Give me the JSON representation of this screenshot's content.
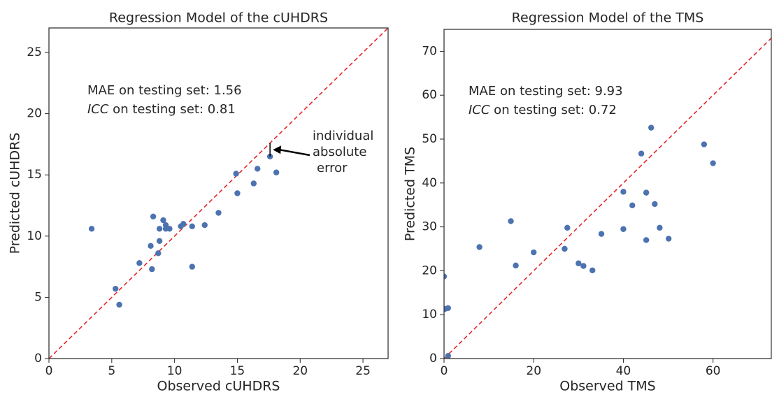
{
  "chart_data": [
    {
      "type": "scatter",
      "title": "Regression Model of the cUHDRS",
      "xlabel": "Observed cUHDRS",
      "ylabel": "Predicted cUHDRS",
      "x": [
        3.4,
        5.3,
        5.6,
        7.2,
        8.1,
        8.2,
        8.3,
        8.7,
        8.8,
        8.8,
        9.1,
        9.3,
        9.3,
        9.6,
        10.5,
        10.7,
        11.4,
        11.4,
        12.4,
        13.5,
        14.9,
        15.0,
        16.3,
        16.6,
        17.6,
        18.1
      ],
      "values": [
        10.6,
        5.7,
        4.4,
        7.8,
        9.2,
        7.3,
        11.6,
        8.6,
        9.6,
        10.6,
        11.3,
        10.9,
        10.6,
        10.6,
        10.8,
        11.0,
        7.5,
        10.8,
        10.9,
        11.9,
        15.1,
        13.5,
        14.3,
        15.5,
        16.5,
        15.2
      ],
      "color": "#4c72b0",
      "identity_line": true,
      "identity_color": "#e8262a",
      "xlim": [
        0,
        27
      ],
      "ylim": [
        0,
        27
      ],
      "xticks": [
        0,
        5,
        10,
        15,
        20,
        25
      ],
      "yticks": [
        0,
        5,
        10,
        15,
        20,
        25
      ],
      "annotations": [
        "MAE on testing set: 1.56",
        "ICC on testing set: 0.81"
      ],
      "callout": {
        "point": 24,
        "lines": [
          "individual",
          "absolute",
          "error"
        ]
      }
    },
    {
      "type": "scatter",
      "title": "Regression Model of the TMS",
      "xlabel": "Observed TMS",
      "ylabel": "Predicted TMS",
      "x": [
        0,
        0.2,
        0.9,
        0.9,
        7.9,
        14.9,
        16.0,
        20.0,
        26.9,
        27.5,
        30.0,
        31.1,
        33.1,
        35.1,
        40.0,
        40.0,
        42.0,
        44.0,
        45.1,
        45.1,
        46.2,
        47.0,
        48.1,
        50.1,
        58.0,
        60.0
      ],
      "values": [
        18.7,
        11.3,
        11.5,
        0.6,
        25.4,
        31.3,
        21.2,
        24.2,
        25.0,
        29.8,
        21.7,
        21.1,
        20.1,
        28.4,
        38.0,
        29.5,
        34.9,
        46.7,
        37.8,
        27.0,
        52.6,
        35.2,
        29.8,
        27.3,
        48.8,
        44.5
      ],
      "color": "#4c72b0",
      "identity_line": true,
      "identity_color": "#e8262a",
      "xlim": [
        0,
        73
      ],
      "ylim": [
        0,
        75
      ],
      "xticks": [
        0,
        20,
        40,
        60
      ],
      "yticks": [
        0,
        10,
        20,
        30,
        40,
        50,
        60,
        70
      ],
      "annotations": [
        "MAE on testing set: 9.93",
        "ICC on testing set: 0.72"
      ]
    }
  ]
}
